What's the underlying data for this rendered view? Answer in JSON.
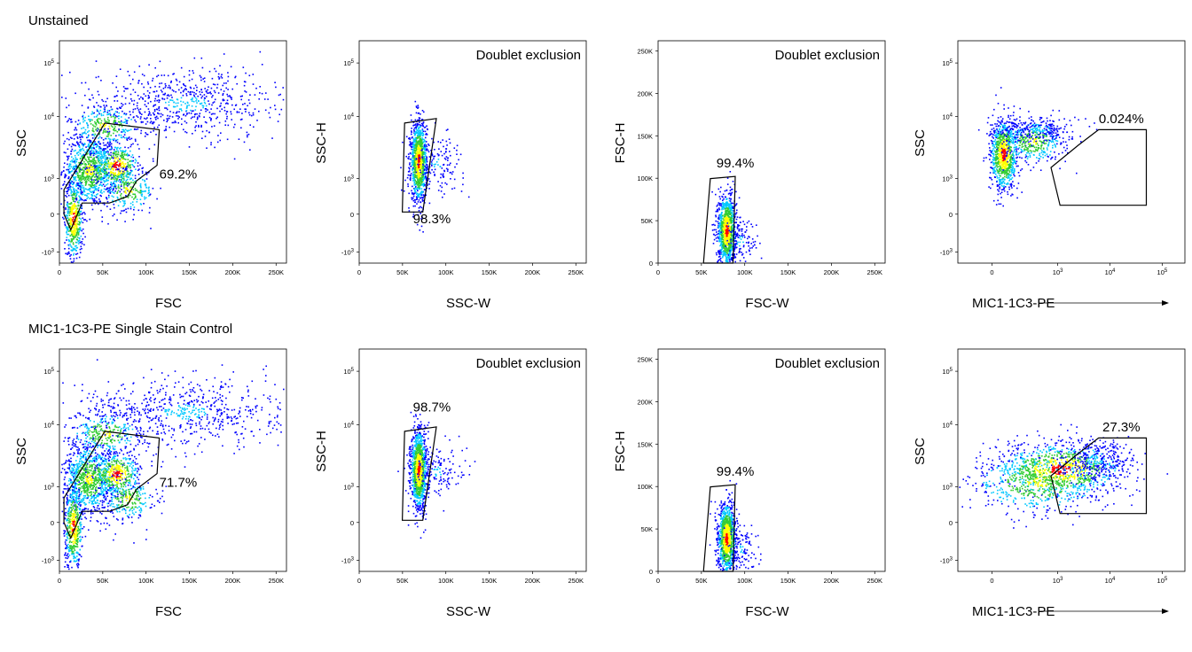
{
  "rows": [
    {
      "title": "Unstained",
      "plots": [
        {
          "type": "scatter",
          "plot": "FSC vs SSC",
          "xlabel": "FSC",
          "ylabel": "SSC",
          "xticks": [
            "0",
            "50K",
            "100K",
            "150K",
            "200K",
            "250K"
          ],
          "yticks": [
            "10^5",
            "10^4",
            "10^3",
            "0",
            "-10^3"
          ],
          "header": "",
          "gate_label": "69.2%",
          "gate_percent": 69.2
        },
        {
          "type": "scatter",
          "plot": "SSC-W vs SSC-H",
          "xlabel": "SSC-W",
          "ylabel": "SSC-H",
          "xticks": [
            "0",
            "50K",
            "100K",
            "150K",
            "200K",
            "250K"
          ],
          "yticks": [
            "10^5",
            "10^4",
            "10^3",
            "0",
            "-10^3"
          ],
          "header": "Doublet exclusion",
          "gate_label": "98.3%",
          "gate_percent": 98.3
        },
        {
          "type": "scatter",
          "plot": "FSC-W vs FSC-H",
          "xlabel": "FSC-W",
          "ylabel": "FSC-H",
          "xticks": [
            "0",
            "50K",
            "100K",
            "150K",
            "200K",
            "250K"
          ],
          "yticks": [
            "250K",
            "200K",
            "150K",
            "100K",
            "50K",
            "0"
          ],
          "header": "Doublet exclusion",
          "gate_label": "99.4%",
          "gate_percent": 99.4
        },
        {
          "type": "scatter",
          "plot": "MIC1-1C3-PE vs SSC",
          "xlabel": "MIC1-1C3-PE",
          "ylabel": "SSC",
          "xticks": [
            "0",
            "10^3",
            "10^4",
            "10^5"
          ],
          "yticks": [
            "10^5",
            "10^4",
            "10^3",
            "0",
            "-10^3"
          ],
          "header": "",
          "gate_label": "0.024%",
          "gate_percent": 0.024
        }
      ]
    },
    {
      "title": "MIC1-1C3-PE Single Stain Control",
      "plots": [
        {
          "type": "scatter",
          "plot": "FSC vs SSC",
          "xlabel": "FSC",
          "ylabel": "SSC",
          "xticks": [
            "0",
            "50K",
            "100K",
            "150K",
            "200K",
            "250K"
          ],
          "yticks": [
            "10^5",
            "10^4",
            "10^3",
            "0",
            "-10^3"
          ],
          "header": "",
          "gate_label": "71.7%",
          "gate_percent": 71.7
        },
        {
          "type": "scatter",
          "plot": "SSC-W vs SSC-H",
          "xlabel": "SSC-W",
          "ylabel": "SSC-H",
          "xticks": [
            "0",
            "50K",
            "100K",
            "150K",
            "200K",
            "250K"
          ],
          "yticks": [
            "10^5",
            "10^4",
            "10^3",
            "0",
            "-10^3"
          ],
          "header": "Doublet exclusion",
          "gate_label": "98.7%",
          "gate_percent": 98.7
        },
        {
          "type": "scatter",
          "plot": "FSC-W vs FSC-H",
          "xlabel": "FSC-W",
          "ylabel": "FSC-H",
          "xticks": [
            "0",
            "50K",
            "100K",
            "150K",
            "200K",
            "250K"
          ],
          "yticks": [
            "250K",
            "200K",
            "150K",
            "100K",
            "50K",
            "0"
          ],
          "header": "Doublet exclusion",
          "gate_label": "99.4%",
          "gate_percent": 99.4
        },
        {
          "type": "scatter",
          "plot": "MIC1-1C3-PE vs SSC",
          "xlabel": "MIC1-1C3-PE",
          "ylabel": "SSC",
          "xticks": [
            "0",
            "10^3",
            "10^4",
            "10^5"
          ],
          "yticks": [
            "10^5",
            "10^4",
            "10^3",
            "0",
            "-10^3"
          ],
          "header": "",
          "gate_label": "27.3%",
          "gate_percent": 27.3
        }
      ]
    }
  ],
  "colors": {
    "low": "#0000ff",
    "mid1": "#00c8ff",
    "mid2": "#33cc33",
    "mid3": "#ffff00",
    "high": "#ff0000",
    "frame": "#000000"
  }
}
